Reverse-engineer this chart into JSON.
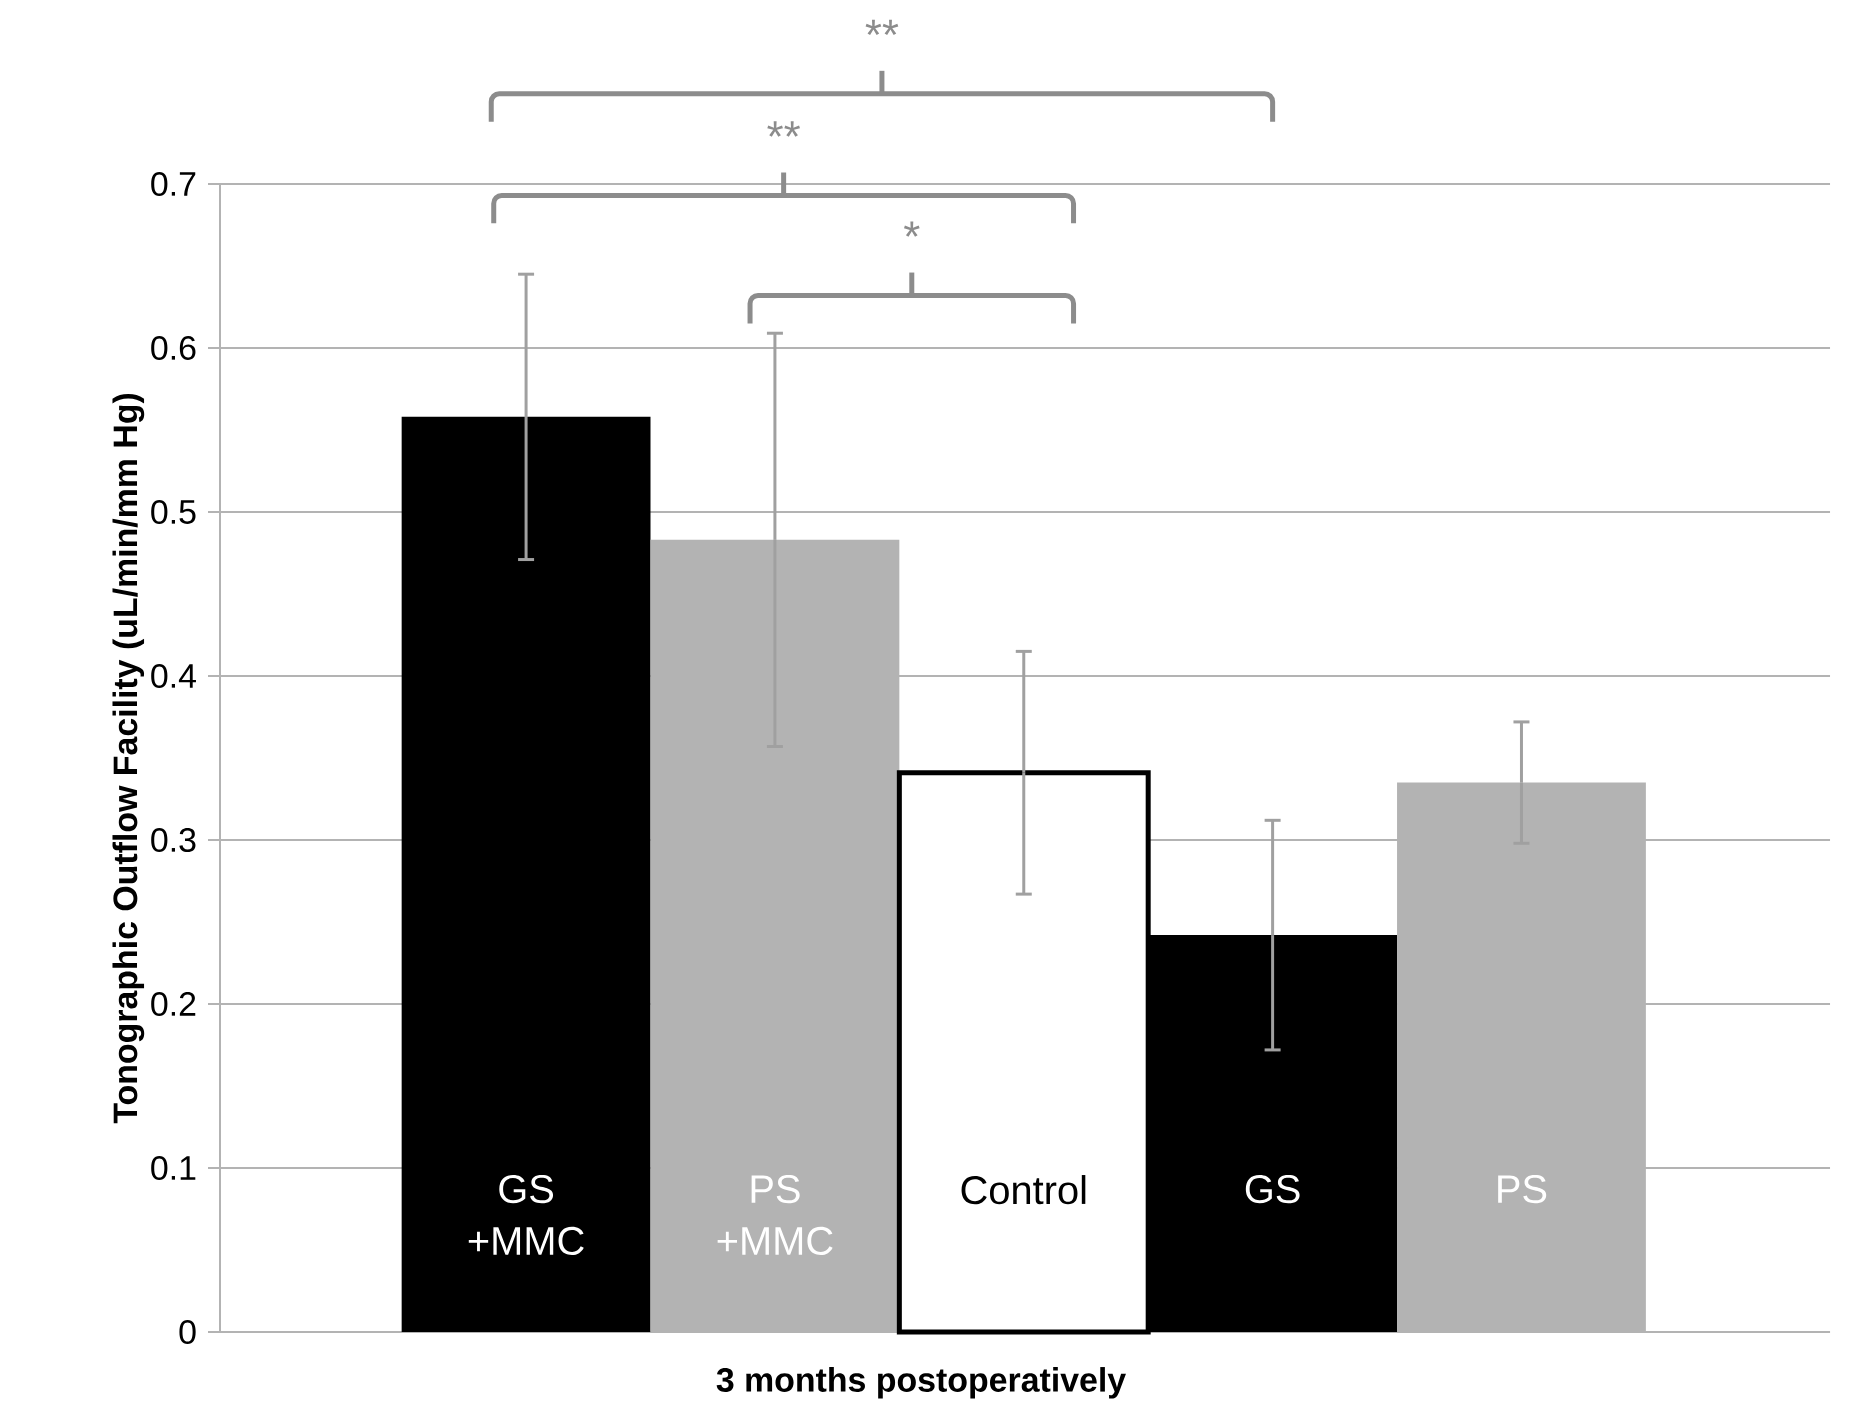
{
  "chart_data": {
    "type": "bar",
    "xlabel": "3 months postoperatively",
    "ylabel": "Tonographic Outflow Facility (uL/min/mm Hg)",
    "categories": [
      "GS +MMC",
      "PS +MMC",
      "Control",
      "GS",
      "PS"
    ],
    "values": [
      0.558,
      0.483,
      0.341,
      0.242,
      0.335
    ],
    "errors": [
      0.087,
      0.126,
      0.074,
      0.07,
      0.037
    ],
    "colors": [
      "#000000",
      "#b3b3b3",
      "#ffffff",
      "#000000",
      "#b3b3b3"
    ],
    "ylim": [
      0,
      0.7
    ],
    "yticks": [
      0,
      0.1,
      0.2,
      0.3,
      0.4,
      0.5,
      0.6,
      0.7
    ],
    "grid": "y",
    "annotations": [
      "**",
      "**",
      "*"
    ]
  }
}
